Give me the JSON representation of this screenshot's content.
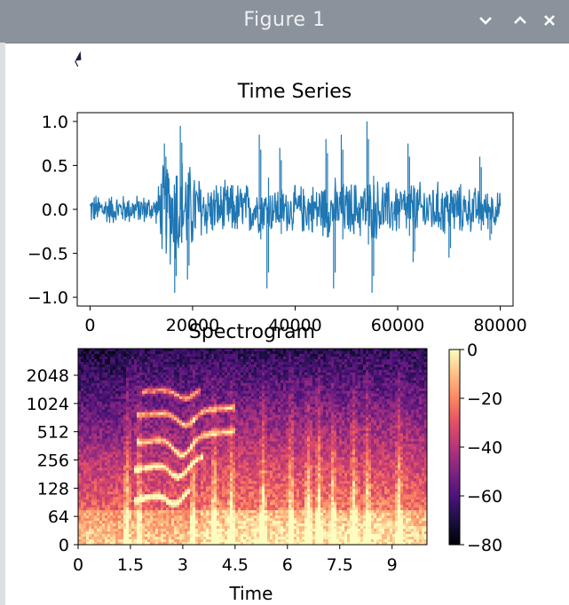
{
  "window": {
    "title": "Figure 1",
    "controls": [
      "minimize",
      "maximize",
      "close"
    ]
  },
  "chart_data": [
    {
      "type": "line",
      "title": "Time Series",
      "xlim": [
        -2500,
        82500
      ],
      "ylim": [
        -1.1,
        1.1
      ],
      "xticks": [
        0,
        20000,
        40000,
        60000,
        80000
      ],
      "xticklabels": [
        "0",
        "20000",
        "40000",
        "60000",
        "80000"
      ],
      "yticks": [
        -1.0,
        -0.5,
        0.0,
        0.5,
        1.0
      ],
      "yticklabels": [
        "−1.0",
        "−0.5",
        "0.0",
        "0.5",
        "1.0"
      ],
      "color": "#1f77b4",
      "envelope": [
        {
          "x": 0,
          "amp": 0.2
        },
        {
          "x": 13000,
          "amp": 0.18
        },
        {
          "x": 13800,
          "amp": 0.55
        },
        {
          "x": 16000,
          "amp": 0.75
        },
        {
          "x": 18000,
          "amp": 0.7
        },
        {
          "x": 20000,
          "amp": 0.55
        },
        {
          "x": 23000,
          "amp": 0.35
        },
        {
          "x": 30000,
          "amp": 0.35
        },
        {
          "x": 33000,
          "amp": 0.3
        },
        {
          "x": 40000,
          "amp": 0.3
        },
        {
          "x": 45000,
          "amp": 0.35
        },
        {
          "x": 50000,
          "amp": 0.35
        },
        {
          "x": 55000,
          "amp": 0.4
        },
        {
          "x": 60000,
          "amp": 0.35
        },
        {
          "x": 70000,
          "amp": 0.35
        },
        {
          "x": 80000,
          "amp": 0.22
        }
      ],
      "spikes": [
        {
          "x": 14500,
          "y": 0.75
        },
        {
          "x": 16500,
          "y": -0.95
        },
        {
          "x": 17600,
          "y": 0.95
        },
        {
          "x": 19000,
          "y": -0.8
        },
        {
          "x": 33000,
          "y": 0.85
        },
        {
          "x": 34500,
          "y": -0.9
        },
        {
          "x": 37000,
          "y": 0.7
        },
        {
          "x": 46000,
          "y": 0.8
        },
        {
          "x": 47500,
          "y": -0.9
        },
        {
          "x": 49000,
          "y": 0.85
        },
        {
          "x": 54000,
          "y": 1.0
        },
        {
          "x": 55000,
          "y": -0.95
        },
        {
          "x": 62000,
          "y": 0.75
        },
        {
          "x": 63000,
          "y": -0.6
        },
        {
          "x": 70000,
          "y": -0.55
        },
        {
          "x": 76000,
          "y": 0.6
        },
        {
          "x": 78000,
          "y": -0.35
        }
      ]
    },
    {
      "type": "heatmap",
      "title": "Spectrogram",
      "xlabel": "Time",
      "xlim": [
        0,
        10
      ],
      "xticks": [
        0,
        1.5,
        3,
        4.5,
        6,
        7.5,
        9
      ],
      "xticklabels": [
        "0",
        "1.5",
        "3",
        "4.5",
        "6",
        "7.5",
        "9"
      ],
      "y_scale": "symlog",
      "ytick_labels": [
        "0",
        "64",
        "128",
        "256",
        "512",
        "1024",
        "2048"
      ],
      "colorbar": {
        "min": -80,
        "max": 0,
        "colormap": "magma",
        "ticks": [
          0,
          -20,
          -40,
          -60,
          -80
        ],
        "ticklabels": [
          "0",
          "−20",
          "−40",
          "−60",
          "−80"
        ]
      },
      "harmonic_tracks": [
        {
          "t_start": 1.6,
          "t_end": 3.2,
          "level_from": 0.22,
          "level_to": 0.3,
          "dip_at": 2.8,
          "dip_depth": 0.07
        },
        {
          "t_start": 1.6,
          "t_end": 3.6,
          "level_from": 0.38,
          "level_to": 0.45,
          "dip_at": 2.9,
          "dip_depth": 0.08
        },
        {
          "t_start": 1.7,
          "t_end": 4.5,
          "level_from": 0.52,
          "level_to": 0.58,
          "dip_at": 3.0,
          "dip_depth": 0.09
        },
        {
          "t_start": 1.7,
          "t_end": 4.5,
          "level_from": 0.66,
          "level_to": 0.7,
          "dip_at": 3.1,
          "dip_depth": 0.07
        },
        {
          "t_start": 1.8,
          "t_end": 3.5,
          "level_from": 0.78,
          "level_to": 0.8,
          "dip_at": 3.1,
          "dip_depth": 0.05
        }
      ],
      "onsets": [
        1.4,
        1.75,
        3.3,
        3.9,
        4.4,
        5.3,
        6.1,
        6.6,
        6.9,
        7.3,
        7.9,
        8.3,
        9.2
      ]
    }
  ]
}
